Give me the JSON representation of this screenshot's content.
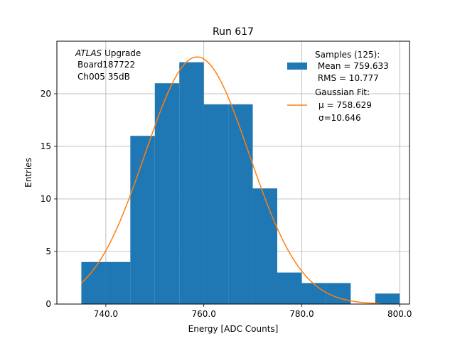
{
  "chart_data": {
    "type": "bar",
    "title": "Run 617",
    "xlabel": "Energy [ADC Counts]",
    "ylabel": "Entries",
    "xlim": [
      730,
      802
    ],
    "ylim": [
      0,
      25
    ],
    "grid": true,
    "x_ticks": [
      740,
      760,
      780,
      800
    ],
    "x_tick_labels": [
      "740.0",
      "760.0",
      "780.0",
      "800.0"
    ],
    "y_ticks": [
      0,
      5,
      10,
      15,
      20
    ],
    "y_tick_labels": [
      "0",
      "5",
      "10",
      "15",
      "20"
    ],
    "histogram": {
      "name": "Samples",
      "color": "#1f77b4",
      "bins": [
        {
          "left": 735,
          "right": 740,
          "count": 4
        },
        {
          "left": 740,
          "right": 745,
          "count": 4
        },
        {
          "left": 745,
          "right": 750,
          "count": 16
        },
        {
          "left": 750,
          "right": 755,
          "count": 21
        },
        {
          "left": 755,
          "right": 760,
          "count": 23
        },
        {
          "left": 760,
          "right": 765,
          "count": 19
        },
        {
          "left": 765,
          "right": 770,
          "count": 19
        },
        {
          "left": 770,
          "right": 775,
          "count": 11
        },
        {
          "left": 775,
          "right": 780,
          "count": 3
        },
        {
          "left": 780,
          "right": 785,
          "count": 2
        },
        {
          "left": 785,
          "right": 790,
          "count": 2
        },
        {
          "left": 790,
          "right": 795,
          "count": 0
        },
        {
          "left": 795,
          "right": 800,
          "count": 1
        }
      ]
    },
    "fit": {
      "name": "Gaussian Fit",
      "color": "#ff7f0e",
      "mu": 758.629,
      "sigma": 10.646,
      "amplitude": 23.5,
      "x_range": [
        735,
        796
      ]
    },
    "annotation": {
      "italic": "ATLAS",
      "rest": " Upgrade",
      "line2": "Board187722",
      "line3": "Ch005 35dB"
    },
    "legend": {
      "position": "top-right",
      "hist_lines": [
        "Samples (125):",
        " Mean = 759.633",
        " RMS = 10.777"
      ],
      "fit_lines": [
        "Gaussian Fit:",
        "μ = 758.629",
        "σ=10.646"
      ]
    }
  }
}
